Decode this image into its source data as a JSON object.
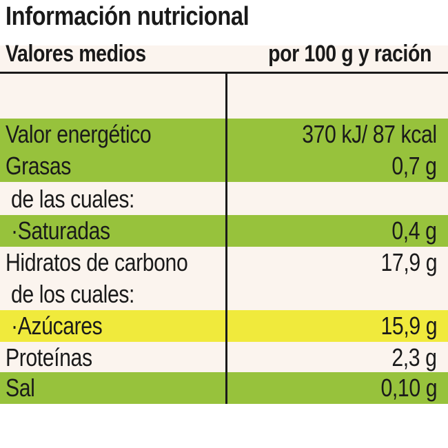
{
  "title": "Información nutricional",
  "header": {
    "left": "Valores medios",
    "right": "por 100 g y ración"
  },
  "colors": {
    "green": "#97c23c",
    "cream": "#fbf4ee",
    "yellow": "#f0ea3c"
  },
  "rows": [
    {
      "name": "Valor energético",
      "value": "370 kJ/ 87 kcal",
      "bg": "green"
    },
    {
      "name": "Grasas",
      "value": "0,7 g",
      "bg": "green"
    },
    {
      "name": "de las cuales:",
      "value": "",
      "bg": "cream"
    },
    {
      "name": "·Saturadas",
      "value": "0,4 g",
      "bg": "green"
    },
    {
      "name": "Hidratos de carbono",
      "value": "17,9 g",
      "bg": "cream"
    },
    {
      "name": "de los cuales:",
      "value": "",
      "bg": "cream"
    },
    {
      "name": "·Azúcares",
      "value": "15,9 g",
      "bg": "yellow"
    },
    {
      "name": "Proteínas",
      "value": "2,3 g",
      "bg": "cream"
    },
    {
      "name": "Sal",
      "value": "0,10 g",
      "bg": "green"
    }
  ]
}
